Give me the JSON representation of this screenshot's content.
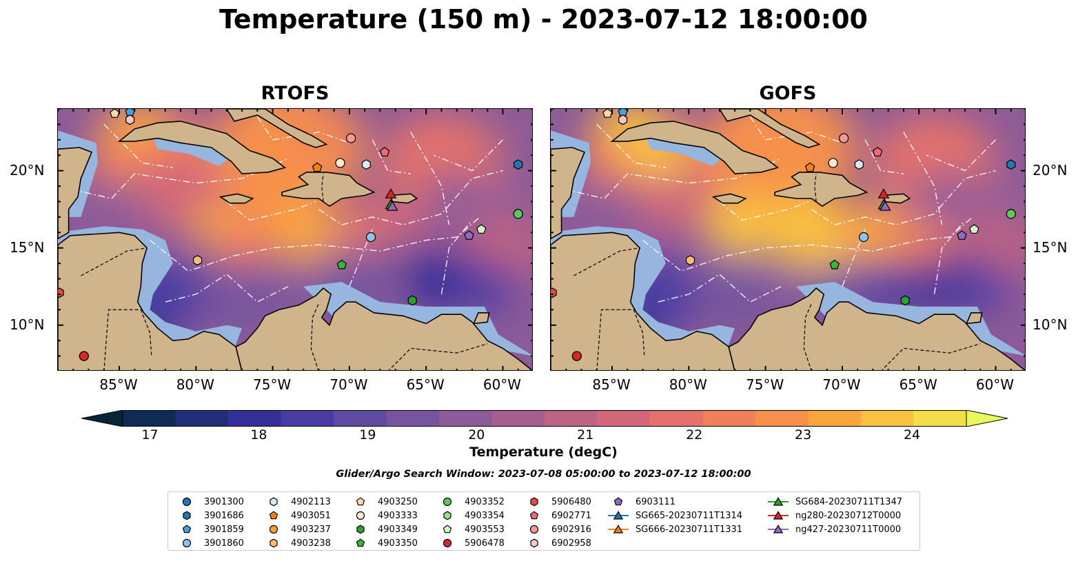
{
  "title": "Temperature (150 m) - 2023-07-12 18:00:00",
  "panels": [
    {
      "title": "RTOFS",
      "variant": "rtofs"
    },
    {
      "title": "GOFS",
      "variant": "gofs"
    }
  ],
  "axes": {
    "lon_range": [
      -89,
      -58
    ],
    "lat_range": [
      7,
      24
    ],
    "x_ticks": [
      "85°W",
      "80°W",
      "75°W",
      "70°W",
      "65°W",
      "60°W"
    ],
    "x_tick_values": [
      -85,
      -80,
      -75,
      -70,
      -65,
      -60
    ],
    "y_ticks": [
      "20°N",
      "15°N",
      "10°N"
    ],
    "y_tick_values": [
      20,
      15,
      10
    ]
  },
  "colorbar": {
    "label": "Temperature (degC)",
    "min": 16.75,
    "max": 24.5,
    "step": 0.5,
    "extend": "both",
    "ticks": [
      "17",
      "18",
      "19",
      "20",
      "21",
      "22",
      "23",
      "24"
    ],
    "tick_values": [
      17,
      18,
      19,
      20,
      21,
      22,
      23,
      24
    ],
    "colors": [
      "#062637",
      "#0e2a56",
      "#1f2f7c",
      "#342f99",
      "#483ca4",
      "#5e4aa3",
      "#76549f",
      "#8d5b98",
      "#a55f8e",
      "#bd6384",
      "#d26879",
      "#e4726a",
      "#f0805b",
      "#f7904b",
      "#faa63f",
      "#f9c23e",
      "#f2de49",
      "#e8fa5b"
    ]
  },
  "colors": {
    "land": "#cfb48c",
    "ocean_shelf": "#96b6e0",
    "coast": "#000000",
    "border": "#000000",
    "eez": "#ffffff"
  },
  "search_window": "Glider/Argo Search Window: 2023-07-08 05:00:00 to 2023-07-12 18:00:00",
  "legend": [
    {
      "label": "3901300",
      "marker": "circle",
      "color": "#1f77b4"
    },
    {
      "label": "3901686",
      "marker": "hexagon",
      "color": "#1f77b4"
    },
    {
      "label": "3901859",
      "marker": "pentagon",
      "color": "#4a9fd8"
    },
    {
      "label": "3901860",
      "marker": "circle",
      "color": "#8ec3ee"
    },
    {
      "label": "4902113",
      "marker": "hexagon",
      "color": "#d8e9fb"
    },
    {
      "label": "4903051",
      "marker": "pentagon",
      "color": "#ff7f0e"
    },
    {
      "label": "4903237",
      "marker": "circle",
      "color": "#ff9f40"
    },
    {
      "label": "4903238",
      "marker": "hexagon",
      "color": "#ffbb78"
    },
    {
      "label": "4903250",
      "marker": "pentagon",
      "color": "#ffd8a8"
    },
    {
      "label": "4903333",
      "marker": "circle",
      "color": "#fde8d0"
    },
    {
      "label": "4903349",
      "marker": "hexagon",
      "color": "#2ca02c"
    },
    {
      "label": "4903350",
      "marker": "pentagon",
      "color": "#3cb43c"
    },
    {
      "label": "4903352",
      "marker": "circle",
      "color": "#5cc85c"
    },
    {
      "label": "4903354",
      "marker": "hexagon",
      "color": "#98df8a"
    },
    {
      "label": "4903553",
      "marker": "pentagon",
      "color": "#d4f5cc"
    },
    {
      "label": "5906478",
      "marker": "circle",
      "color": "#d62728"
    },
    {
      "label": "5906480",
      "marker": "hexagon",
      "color": "#e34a4a"
    },
    {
      "label": "6902771",
      "marker": "pentagon",
      "color": "#f26a75"
    },
    {
      "label": "6902916",
      "marker": "circle",
      "color": "#ff9896"
    },
    {
      "label": "6902958",
      "marker": "hexagon",
      "color": "#ffc4c4"
    },
    {
      "label": "6903111",
      "marker": "pentagon",
      "color": "#9467bd"
    },
    {
      "label": "SG665-20230711T1314",
      "marker": "triangle",
      "color": "#1f77b4",
      "line": true
    },
    {
      "label": "SG666-20230711T1331",
      "marker": "triangle",
      "color": "#ff7f0e",
      "line": true
    },
    {
      "label": "SG684-20230711T1347",
      "marker": "triangle",
      "color": "#2ca02c",
      "line": true
    },
    {
      "label": "ng280-20230712T0000",
      "marker": "triangle",
      "color": "#d62728",
      "line": true
    },
    {
      "label": "ng427-20230711T0000",
      "marker": "triangle",
      "color": "#9467bd",
      "line": true
    }
  ],
  "platforms": [
    {
      "label": "3901300",
      "lon": -87.3,
      "lat": 8.0
    },
    {
      "label": "3901686",
      "lon": -59.0,
      "lat": 20.4
    },
    {
      "label": "3901859",
      "lon": -84.3,
      "lat": 23.8
    },
    {
      "label": "3901860",
      "lon": -68.6,
      "lat": 15.7
    },
    {
      "label": "4902113",
      "lon": -68.9,
      "lat": 20.4
    },
    {
      "label": "4903051",
      "lon": -72.1,
      "lat": 20.2
    },
    {
      "label": "4903237",
      "lon": -59.0,
      "lat": 17.2
    },
    {
      "label": "4903238",
      "lon": -79.9,
      "lat": 14.2
    },
    {
      "label": "4903250",
      "lon": -85.3,
      "lat": 23.7
    },
    {
      "label": "4903333",
      "lon": -70.6,
      "lat": 20.5
    },
    {
      "label": "4903349",
      "lon": -65.9,
      "lat": 11.6
    },
    {
      "label": "4903350",
      "lon": -70.5,
      "lat": 13.9
    },
    {
      "label": "4903352",
      "lon": -59.0,
      "lat": 17.2
    },
    {
      "label": "4903354",
      "lon": -84.3,
      "lat": 23.3
    },
    {
      "label": "4903553",
      "lon": -61.4,
      "lat": 16.2
    },
    {
      "label": "5906478",
      "lon": -87.3,
      "lat": 8.0
    },
    {
      "label": "5906480",
      "lon": -88.9,
      "lat": 12.1
    },
    {
      "label": "6902771",
      "lon": -67.7,
      "lat": 21.2
    },
    {
      "label": "6902916",
      "lon": -69.9,
      "lat": 22.1
    },
    {
      "label": "6902958",
      "lon": -84.3,
      "lat": 23.3
    },
    {
      "label": "6903111",
      "lon": -62.2,
      "lat": 15.8
    },
    {
      "label": "SG665-20230711T1314",
      "lon": -67.3,
      "lat": 17.8
    },
    {
      "label": "SG666-20230711T1331",
      "lon": -67.3,
      "lat": 17.8
    },
    {
      "label": "SG684-20230711T1347",
      "lon": -67.3,
      "lat": 17.8
    },
    {
      "label": "ng280-20230712T0000",
      "lon": -67.3,
      "lat": 18.5
    },
    {
      "label": "ng427-20230711T0000",
      "lon": -67.2,
      "lat": 17.7
    }
  ]
}
